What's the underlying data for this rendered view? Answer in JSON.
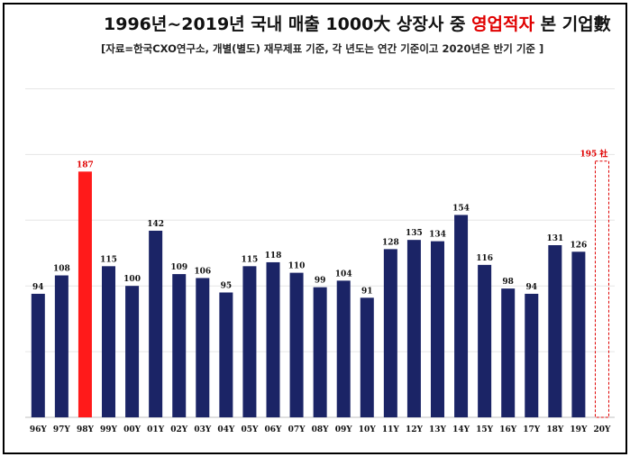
{
  "title_main": "1996년~2019년 국내 매출 1000大 상장사 중 ",
  "title_highlight": "영업적자",
  "title_tail": " 본 기업數",
  "subtitle": "[자료=한국CXO연구소, 개별(별도) 재무제표 기준, 각 년도는 연간 기준이고 2020년은 반기 기준 ]",
  "colors": {
    "bar": "#1b2466",
    "highlight": "#ff1a1a",
    "title_highlight": "#e00000",
    "projection": "#e00000"
  },
  "chart_data": {
    "type": "bar",
    "title": "1996년~2019년 국내 매출 1000大 상장사 중 영업적자 본 기업數",
    "subtitle": "[자료=한국CXO연구소, 개별(별도) 재무제표 기준, 각 년도는 연간 기준이고 2020년은 반기 기준 ]",
    "categories": [
      "96Y",
      "97Y",
      "98Y",
      "99Y",
      "00Y",
      "01Y",
      "02Y",
      "03Y",
      "04Y",
      "05Y",
      "06Y",
      "07Y",
      "08Y",
      "09Y",
      "10Y",
      "11Y",
      "12Y",
      "13Y",
      "14Y",
      "15Y",
      "16Y",
      "17Y",
      "18Y",
      "19Y",
      "20Y"
    ],
    "values": [
      94,
      108,
      187,
      115,
      100,
      142,
      109,
      106,
      95,
      115,
      118,
      110,
      99,
      104,
      91,
      128,
      135,
      134,
      154,
      116,
      98,
      94,
      131,
      126,
      195
    ],
    "value_labels": [
      "94",
      "108",
      "187",
      "115",
      "100",
      "142",
      "109",
      "106",
      "95",
      "115",
      "118",
      "110",
      "99",
      "104",
      "91",
      "128",
      "135",
      "134",
      "154",
      "116",
      "98",
      "94",
      "131",
      "126",
      "195 社"
    ],
    "highlight_index": 2,
    "projection_index": 24,
    "ylim": [
      0,
      250
    ],
    "grid": true,
    "xlabel": "",
    "ylabel": ""
  }
}
